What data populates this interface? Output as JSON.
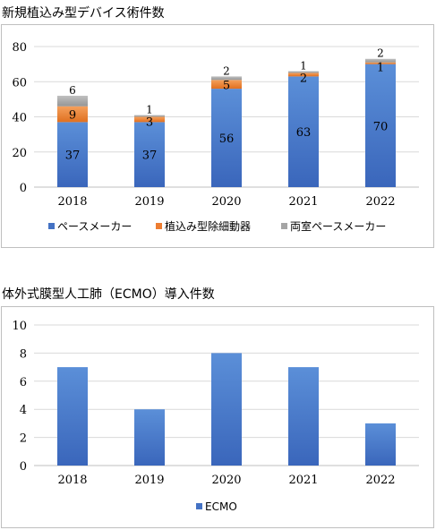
{
  "titles": {
    "chart1": "新規植込み型デバイス術件数",
    "chart2": "体外式膜型人工肺（ECMO）導入件数"
  },
  "colors": {
    "pacemaker": "#4472c4",
    "icd": "#ed7d31",
    "crt": "#a5a5a5",
    "ecmo": "#4472c4",
    "grid": "#d9d9d9"
  },
  "chart_data": [
    {
      "type": "bar",
      "stacked": true,
      "title": "新規植込み型デバイス術件数",
      "categories": [
        "2018",
        "2019",
        "2020",
        "2021",
        "2022"
      ],
      "series": [
        {
          "name": "ペースメーカー",
          "values": [
            37,
            37,
            56,
            63,
            70
          ]
        },
        {
          "name": "植込み型除細動器",
          "values": [
            9,
            3,
            5,
            2,
            1
          ]
        },
        {
          "name": "両室ペースメーカー",
          "values": [
            6,
            1,
            2,
            1,
            2
          ]
        }
      ],
      "ylim": [
        0,
        80
      ],
      "yticks": [
        "0",
        "20",
        "40",
        "60",
        "80"
      ],
      "grid": true,
      "legend": "bottom"
    },
    {
      "type": "bar",
      "title": "体外式膜型人工肺（ECMO）導入件数",
      "categories": [
        "2018",
        "2019",
        "2020",
        "2021",
        "2022"
      ],
      "series": [
        {
          "name": "ECMO",
          "values": [
            7,
            4,
            8,
            7,
            3
          ]
        }
      ],
      "ylim": [
        0,
        10
      ],
      "yticks": [
        "0",
        "2",
        "4",
        "6",
        "8",
        "10"
      ],
      "grid": true,
      "legend": "bottom"
    }
  ]
}
